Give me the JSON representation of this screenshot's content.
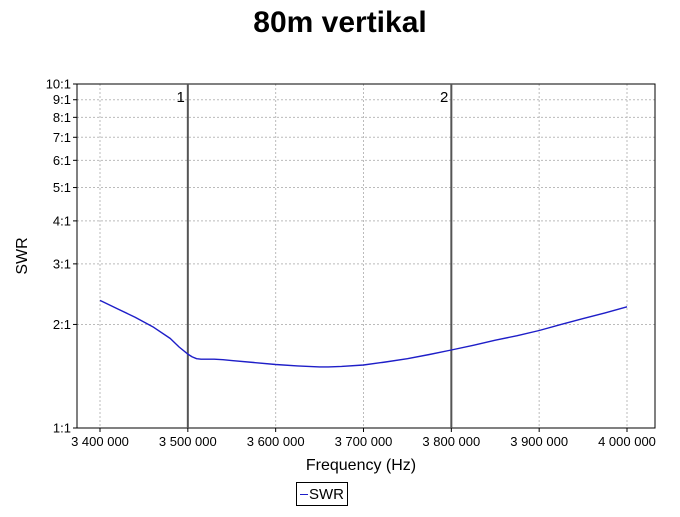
{
  "chart_data": {
    "type": "line",
    "title": "80m vertikal",
    "xlabel": "Frequency (Hz)",
    "ylabel": "SWR",
    "xlim": [
      3400000,
      4000000
    ],
    "ylim": [
      1,
      10
    ],
    "yscale": "log",
    "grid": true,
    "legend_position": "bottom-center",
    "colors": {
      "series": "#1e1ec8",
      "marker": "#555555",
      "grid": "#bbbbbb"
    },
    "x_ticks": [
      {
        "value": 3400000,
        "label": "3 400 000"
      },
      {
        "value": 3500000,
        "label": "3 500 000"
      },
      {
        "value": 3600000,
        "label": "3 600 000"
      },
      {
        "value": 3700000,
        "label": "3 700 000"
      },
      {
        "value": 3800000,
        "label": "3 800 000"
      },
      {
        "value": 3900000,
        "label": "3 900 000"
      },
      {
        "value": 4000000,
        "label": "4 000 000"
      }
    ],
    "y_ticks": [
      {
        "value": 1,
        "label": "1:1"
      },
      {
        "value": 2,
        "label": "2:1"
      },
      {
        "value": 3,
        "label": "3:1"
      },
      {
        "value": 4,
        "label": "4:1"
      },
      {
        "value": 5,
        "label": "5:1"
      },
      {
        "value": 6,
        "label": "6:1"
      },
      {
        "value": 7,
        "label": "7:1"
      },
      {
        "value": 8,
        "label": "8:1"
      },
      {
        "value": 9,
        "label": "9:1"
      },
      {
        "value": 10,
        "label": "10:1"
      }
    ],
    "markers": [
      {
        "label": "1",
        "x": 3500000
      },
      {
        "label": "2",
        "x": 3800000
      }
    ],
    "series": [
      {
        "name": "SWR",
        "x": [
          3400000,
          3420000,
          3440000,
          3460000,
          3480000,
          3490000,
          3500000,
          3505000,
          3510000,
          3515000,
          3520000,
          3530000,
          3540000,
          3550000,
          3575000,
          3600000,
          3625000,
          3650000,
          3660000,
          3675000,
          3700000,
          3725000,
          3750000,
          3775000,
          3800000,
          3825000,
          3850000,
          3875000,
          3900000,
          3925000,
          3950000,
          3975000,
          4000000
        ],
        "y": [
          2.35,
          2.22,
          2.1,
          1.97,
          1.82,
          1.72,
          1.64,
          1.61,
          1.59,
          1.585,
          1.585,
          1.585,
          1.58,
          1.57,
          1.55,
          1.53,
          1.515,
          1.505,
          1.505,
          1.51,
          1.525,
          1.555,
          1.59,
          1.635,
          1.685,
          1.74,
          1.8,
          1.855,
          1.92,
          2.0,
          2.08,
          2.16,
          2.25
        ]
      }
    ]
  }
}
